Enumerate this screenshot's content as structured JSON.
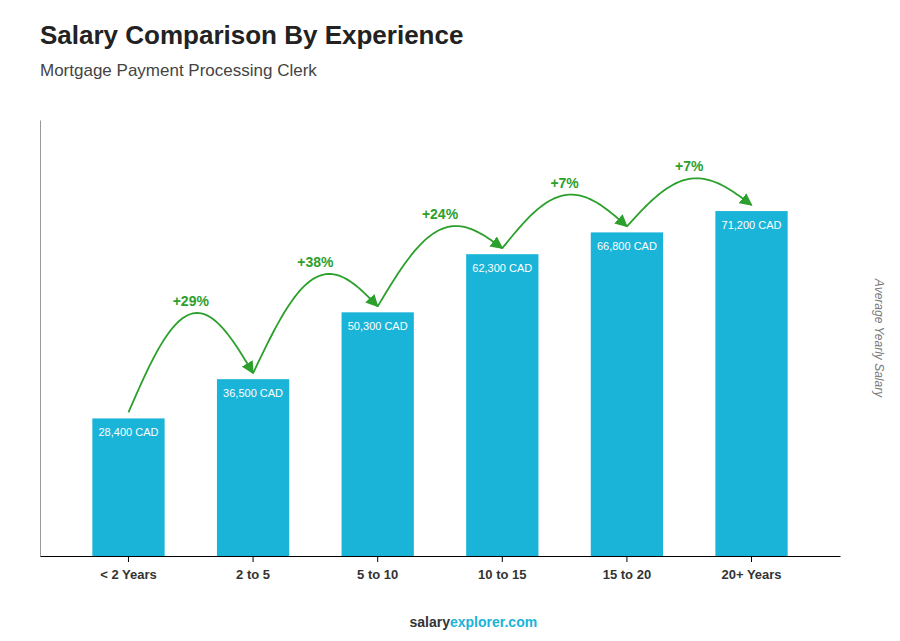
{
  "chart_data": {
    "type": "bar",
    "title": "Salary Comparison By Experience",
    "subtitle": "Mortgage Payment Processing Clerk",
    "ylabel": "Average Yearly Salary",
    "categories": [
      "< 2 Years",
      "2 to 5",
      "5 to 10",
      "10 to 15",
      "15 to 20",
      "20+ Years"
    ],
    "values": [
      28400,
      36500,
      50300,
      62300,
      66800,
      71200
    ],
    "value_labels": [
      "28,400 CAD",
      "36,500 CAD",
      "50,300 CAD",
      "62,300 CAD",
      "66,800 CAD",
      "71,200 CAD"
    ],
    "data_labels": true,
    "annotations": [
      "+29%",
      "+38%",
      "+24%",
      "+7%",
      "+7%"
    ],
    "footer": [
      "salary",
      "explorer.com"
    ],
    "color": "#1ab4d8",
    "ylim": [
      0,
      90000
    ],
    "tick_labels": "x",
    "grid": false
  }
}
